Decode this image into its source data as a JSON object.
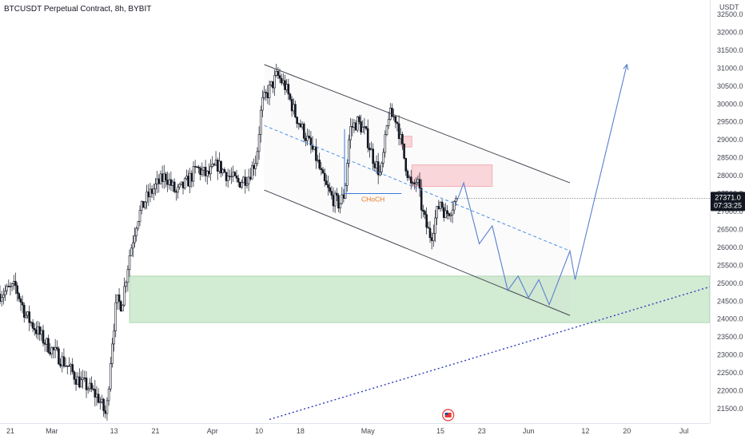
{
  "header": {
    "title": "BTCUSDT Perpetual Contract, 8h, BYBIT"
  },
  "chart_data": {
    "type": "candlestick",
    "price_unit": "USDT",
    "y_ticks": [
      21500,
      22000,
      22500,
      23000,
      23500,
      24000,
      24500,
      25000,
      25500,
      26000,
      26500,
      27000,
      27500,
      28000,
      28500,
      29000,
      29500,
      30000,
      30500,
      31000,
      31500,
      32000,
      32500
    ],
    "ylim": [
      21100,
      32900
    ],
    "x_range_days": [
      0,
      137
    ],
    "x_ticks": [
      {
        "label": "21",
        "day": 2
      },
      {
        "label": "Mar",
        "day": 10
      },
      {
        "label": "13",
        "day": 22
      },
      {
        "label": "21",
        "day": 30
      },
      {
        "label": "Apr",
        "day": 41
      },
      {
        "label": "10",
        "day": 50
      },
      {
        "label": "18",
        "day": 58
      },
      {
        "label": "May",
        "day": 71
      },
      {
        "label": "15",
        "day": 85
      },
      {
        "label": "23",
        "day": 93
      },
      {
        "label": "Jun",
        "day": 102
      },
      {
        "label": "12",
        "day": 113
      },
      {
        "label": "20",
        "day": 121
      },
      {
        "label": "Jul",
        "day": 132
      }
    ],
    "price_path": [
      [
        0,
        24700
      ],
      [
        3,
        24900
      ],
      [
        5,
        24100
      ],
      [
        7,
        23700
      ],
      [
        9,
        23300
      ],
      [
        11,
        23000
      ],
      [
        13,
        22700
      ],
      [
        15,
        22300
      ],
      [
        17,
        22100
      ],
      [
        19,
        21800
      ],
      [
        20.5,
        21300
      ],
      [
        21.5,
        23200
      ],
      [
        22.5,
        24500
      ],
      [
        23.5,
        24400
      ],
      [
        25,
        25800
      ],
      [
        26.5,
        26800
      ],
      [
        28,
        27300
      ],
      [
        30,
        27700
      ],
      [
        32,
        28000
      ],
      [
        34,
        27500
      ],
      [
        36,
        27800
      ],
      [
        38,
        28200
      ],
      [
        40,
        28000
      ],
      [
        42,
        28300
      ],
      [
        44,
        28000
      ],
      [
        46,
        27800
      ],
      [
        48,
        28000
      ],
      [
        49.5,
        28500
      ],
      [
        50.5,
        30000
      ],
      [
        52,
        30400
      ],
      [
        53.5,
        30800
      ],
      [
        55,
        30500
      ],
      [
        57,
        29700
      ],
      [
        59,
        29100
      ],
      [
        61,
        28500
      ],
      [
        62.5,
        27800
      ],
      [
        64,
        27400
      ],
      [
        65.5,
        27200
      ],
      [
        66.5,
        27500
      ],
      [
        67.5,
        29300
      ],
      [
        69,
        29500
      ],
      [
        70.5,
        29200
      ],
      [
        72,
        28500
      ],
      [
        73.5,
        28000
      ],
      [
        75,
        29700
      ],
      [
        76.5,
        29600
      ],
      [
        78,
        28500
      ],
      [
        79.5,
        27600
      ],
      [
        80.5,
        27900
      ],
      [
        81.5,
        27000
      ],
      [
        82.5,
        26500
      ],
      [
        83.2,
        26300
      ],
      [
        84,
        26800
      ],
      [
        85,
        27300
      ],
      [
        86,
        26900
      ],
      [
        87,
        27100
      ],
      [
        88.2,
        27371
      ]
    ],
    "candle_seed": 7,
    "current_price": 27371.0,
    "current_price_label": "27371.0",
    "countdown_label": "07:33:25",
    "channel": {
      "upper": [
        [
          51,
          31100
        ],
        [
          110,
          27800
        ]
      ],
      "lower": [
        [
          51,
          27600
        ],
        [
          110,
          24100
        ]
      ],
      "midline": [
        [
          51,
          29400
        ],
        [
          110,
          25900
        ]
      ]
    },
    "supply_zones": [
      {
        "day_from": 77.5,
        "day_to": 79.5,
        "price_from": 28800,
        "price_to": 29100
      },
      {
        "day_from": 79.5,
        "day_to": 95,
        "price_from": 27700,
        "price_to": 28300
      }
    ],
    "demand_zone": {
      "day_from": 25,
      "day_to": 137,
      "price_from": 23900,
      "price_to": 25200
    },
    "choch": {
      "label": "CHoCH",
      "top_day": 66.5,
      "top_price": 29300,
      "bottom_price": 27500,
      "day_to": 77.5
    },
    "projected_path": [
      [
        88.2,
        27300
      ],
      [
        89.5,
        27800
      ],
      [
        92.5,
        26100
      ],
      [
        95,
        26600
      ],
      [
        98,
        24800
      ],
      [
        100,
        25200
      ],
      [
        102,
        24600
      ],
      [
        104,
        25100
      ],
      [
        106,
        24400
      ],
      [
        110,
        25900
      ],
      [
        111,
        25100
      ],
      [
        121,
        31100
      ]
    ],
    "trendline": [
      [
        52,
        21200
      ],
      [
        137,
        24900
      ]
    ],
    "event_icon": {
      "day": 86.5,
      "label": "US"
    }
  }
}
